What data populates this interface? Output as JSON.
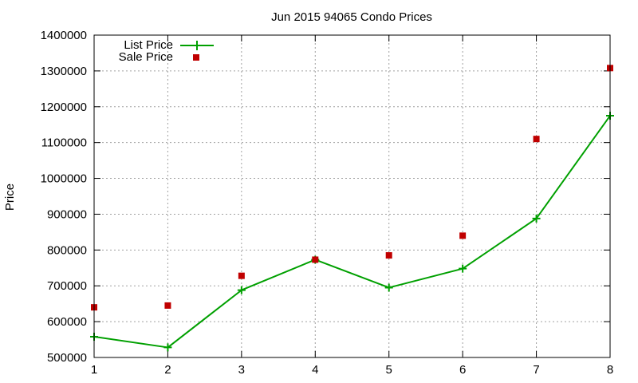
{
  "chart_data": {
    "type": "line",
    "title": "Jun 2015 94065 Condo Prices",
    "xlabel": "",
    "ylabel": "Price",
    "x": [
      1,
      2,
      3,
      4,
      5,
      6,
      7,
      8
    ],
    "xlim": [
      1,
      8
    ],
    "ylim": [
      500000,
      1400000
    ],
    "yticks": [
      500000,
      600000,
      700000,
      800000,
      900000,
      1000000,
      1100000,
      1200000,
      1300000,
      1400000
    ],
    "xticks": [
      1,
      2,
      3,
      4,
      5,
      6,
      7,
      8
    ],
    "grid": true,
    "legend_position": "top-left",
    "series": [
      {
        "name": "List Price",
        "style": "line-with-plus-markers",
        "color": "#00a000",
        "values": [
          558000,
          528000,
          688000,
          773000,
          695000,
          748000,
          888000,
          1175000
        ]
      },
      {
        "name": "Sale Price",
        "style": "square-markers",
        "color": "#c00000",
        "values": [
          640000,
          645000,
          728000,
          773000,
          785000,
          840000,
          1110000,
          1308000
        ]
      }
    ]
  }
}
